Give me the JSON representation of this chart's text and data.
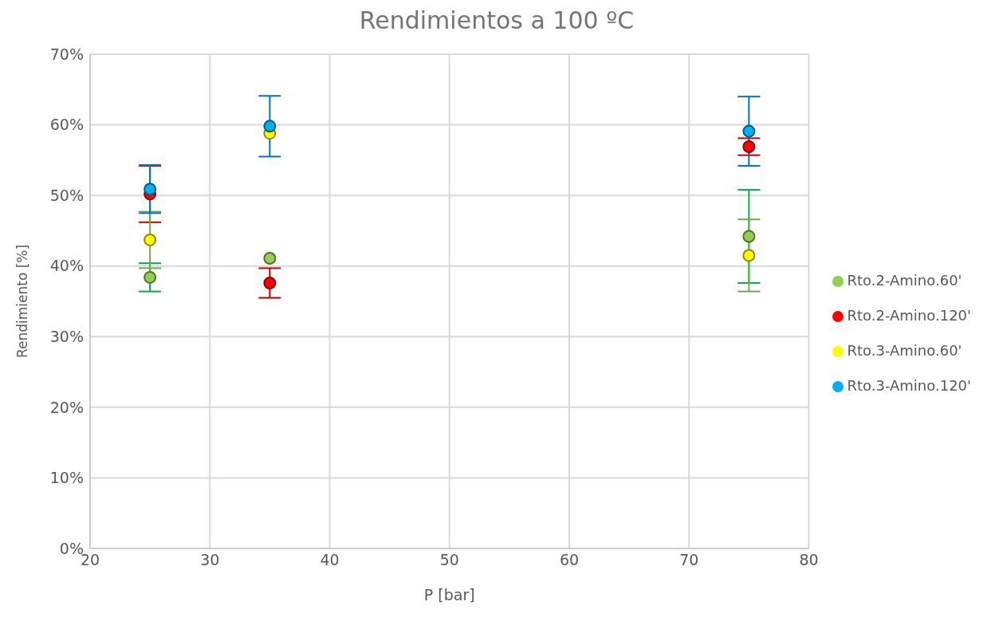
{
  "chart_data": {
    "type": "scatter",
    "title": "Rendimientos a 100 ºC",
    "xlabel": "P [bar]",
    "ylabel": "Rendimiento [%]",
    "x": [
      25,
      35,
      75
    ],
    "series": [
      {
        "name": "Rto.2-Amino.60'",
        "color": "#92d050",
        "values": [
          38.4,
          41.1,
          44.2
        ],
        "errors": [
          2,
          null,
          6.6
        ]
      },
      {
        "name": "Rto.2-Amino.120'",
        "color": "#ff0000",
        "values": [
          50.2,
          37.6,
          56.9
        ],
        "errors": [
          4,
          2.1,
          1.2
        ]
      },
      {
        "name": "Rto.3-Amino.60'",
        "color": "#ffff00",
        "values": [
          43.7,
          58.8,
          41.5
        ],
        "errors": [
          4,
          null,
          5.1
        ]
      },
      {
        "name": "Rto.3-Amino.120'",
        "color": "#00b0f0",
        "values": [
          50.9,
          59.8,
          59.1
        ],
        "errors": [
          3.4,
          4.3,
          4.9
        ]
      }
    ],
    "xlim": [
      20,
      80
    ],
    "xticks": [
      20,
      30,
      40,
      50,
      60,
      70,
      80
    ],
    "ylim": [
      0,
      70
    ],
    "yticks": [
      {
        "value": 0,
        "label": "0%"
      },
      {
        "value": 10,
        "label": "10%"
      },
      {
        "value": 20,
        "label": "20%"
      },
      {
        "value": 30,
        "label": "30%"
      },
      {
        "value": 40,
        "label": "40%"
      },
      {
        "value": 50,
        "label": "50%"
      },
      {
        "value": 60,
        "label": "60%"
      },
      {
        "value": 70,
        "label": "70%"
      }
    ],
    "grid": true,
    "legend": "right",
    "marker": "circle"
  }
}
